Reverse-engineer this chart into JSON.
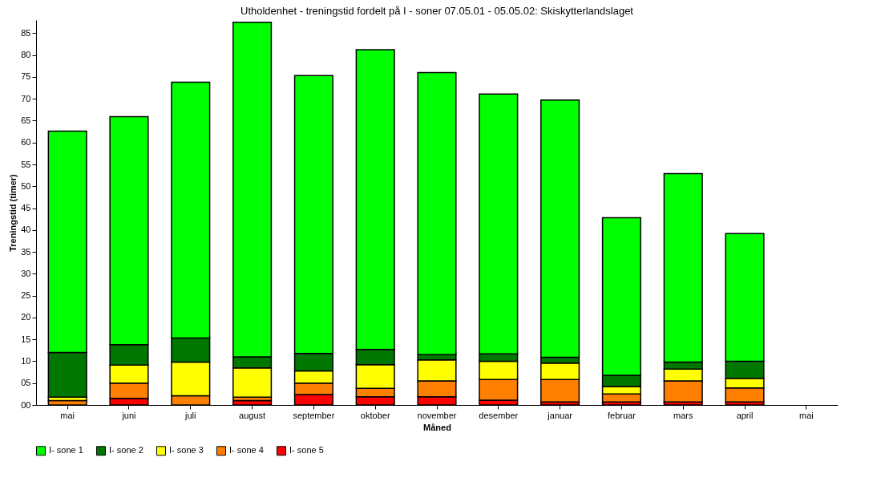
{
  "chart_data": {
    "type": "bar",
    "title": "Utholdenhet - treningstid fordelt på I - soner 07.05.01 - 05.05.02: Skiskytterlandslaget",
    "xlabel": "Måned",
    "ylabel": "Treningstid (timer)",
    "categories": [
      "mai",
      "juni",
      "juli",
      "august",
      "september",
      "oktober",
      "november",
      "desember",
      "januar",
      "februar",
      "mars",
      "april",
      "mai"
    ],
    "stacked": true,
    "grid": false,
    "legend": "bottom",
    "ylim": [
      0,
      88
    ],
    "yticks": [
      {
        "value": 0,
        "label": "00"
      },
      {
        "value": 5,
        "label": "05"
      },
      10,
      15,
      20,
      25,
      30,
      35,
      40,
      45,
      50,
      55,
      60,
      65,
      70,
      75,
      80,
      85
    ],
    "series": [
      {
        "name": "I- sone 5",
        "color": "#ff0000",
        "values": [
          0,
          1.5,
          0,
          1.0,
          2.4,
          1.9,
          1.9,
          1.1,
          0.7,
          0.7,
          0.7,
          0.7,
          null
        ]
      },
      {
        "name": "I- sone 4",
        "color": "#ff8000",
        "values": [
          1.0,
          3.5,
          2.1,
          0.8,
          2.6,
          1.9,
          3.6,
          4.7,
          5.1,
          1.8,
          4.8,
          3.2,
          null
        ]
      },
      {
        "name": "I- sone 3",
        "color": "#ffff00",
        "values": [
          0.8,
          4.1,
          7.7,
          6.7,
          2.8,
          5.4,
          4.8,
          4.2,
          3.8,
          1.7,
          2.7,
          2.2,
          null
        ]
      },
      {
        "name": "I- sone 2",
        "color": "#007700",
        "values": [
          10.2,
          4.7,
          5.5,
          2.5,
          4.0,
          3.5,
          1.2,
          1.7,
          1.3,
          2.6,
          1.6,
          3.9,
          null
        ]
      },
      {
        "name": "I- sone 1",
        "color": "#00ff00",
        "values": [
          50.6,
          52.1,
          58.5,
          76.5,
          63.5,
          68.5,
          64.5,
          59.4,
          58.8,
          36.0,
          43.1,
          29.2,
          null
        ]
      }
    ]
  }
}
